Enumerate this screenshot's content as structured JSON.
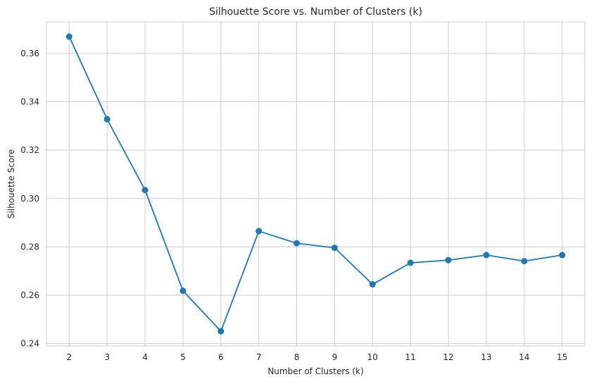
{
  "chart_data": {
    "type": "line",
    "title": "Silhouette Score vs. Number of Clusters (k)",
    "xlabel": "Number of Clusters (k)",
    "ylabel": "Silhouette Score",
    "x": [
      2,
      3,
      4,
      5,
      6,
      7,
      8,
      9,
      10,
      11,
      12,
      13,
      14,
      15
    ],
    "x_tick_labels": [
      "2",
      "3",
      "4",
      "5",
      "6",
      "7",
      "8",
      "9",
      "10",
      "11",
      "12",
      "13",
      "14",
      "15"
    ],
    "series": [
      {
        "values": [
          0.367,
          0.3328,
          0.3035,
          0.2618,
          0.2451,
          0.2865,
          0.2815,
          0.2796,
          0.2645,
          0.2734,
          0.2745,
          0.2766,
          0.2741,
          0.2766
        ],
        "color": "#1f77b4",
        "marker": "circle"
      }
    ],
    "yticks": [
      0.24,
      0.26,
      0.28,
      0.3,
      0.32,
      0.34,
      0.36
    ],
    "y_tick_labels": [
      "0.24",
      "0.26",
      "0.28",
      "0.30",
      "0.32",
      "0.34",
      "0.36"
    ],
    "xlim": [
      1.4,
      15.6
    ],
    "ylim": [
      0.239,
      0.3731
    ],
    "grid": true,
    "grid_color": "#cccccc",
    "legend": false
  }
}
